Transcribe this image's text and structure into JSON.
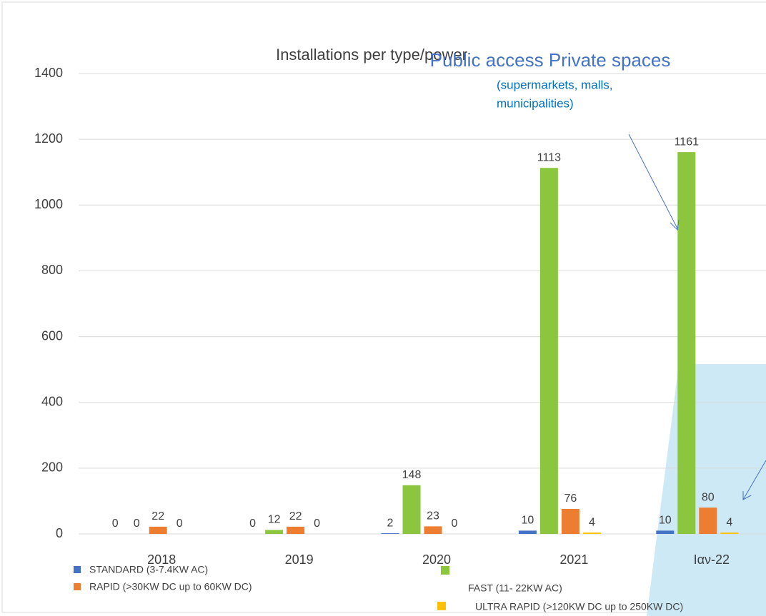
{
  "chart_data": {
    "type": "bar",
    "title": "Installations per type/power",
    "annotations": [
      "Public access Private spaces",
      "(supermarkets, malls,",
      "municipalities)"
    ],
    "categories": [
      "2018",
      "2019",
      "2020",
      "2021",
      "Ιαν-22"
    ],
    "series": [
      {
        "name": "STANDARD (3-7.4KW AC)",
        "color": "#4472c4",
        "values": [
          0,
          0,
          2,
          10,
          10
        ]
      },
      {
        "name": "FAST (11- 22KW AC)",
        "color": "#8cc63f",
        "values": [
          0,
          12,
          148,
          1113,
          1161
        ]
      },
      {
        "name": "RAPID (>30KW DC up to 60KW DC)",
        "color": "#ed7d31",
        "values": [
          22,
          22,
          23,
          76,
          80
        ]
      },
      {
        "name": "ULTRA RAPID (>120KW DC up to 250KW DC)",
        "color": "#ffc000",
        "values": [
          0,
          0,
          0,
          4,
          4
        ]
      }
    ],
    "ylim": [
      0,
      1400
    ],
    "yticks": [
      0,
      200,
      400,
      600,
      800,
      1000,
      1200,
      1400
    ],
    "grid": true
  }
}
